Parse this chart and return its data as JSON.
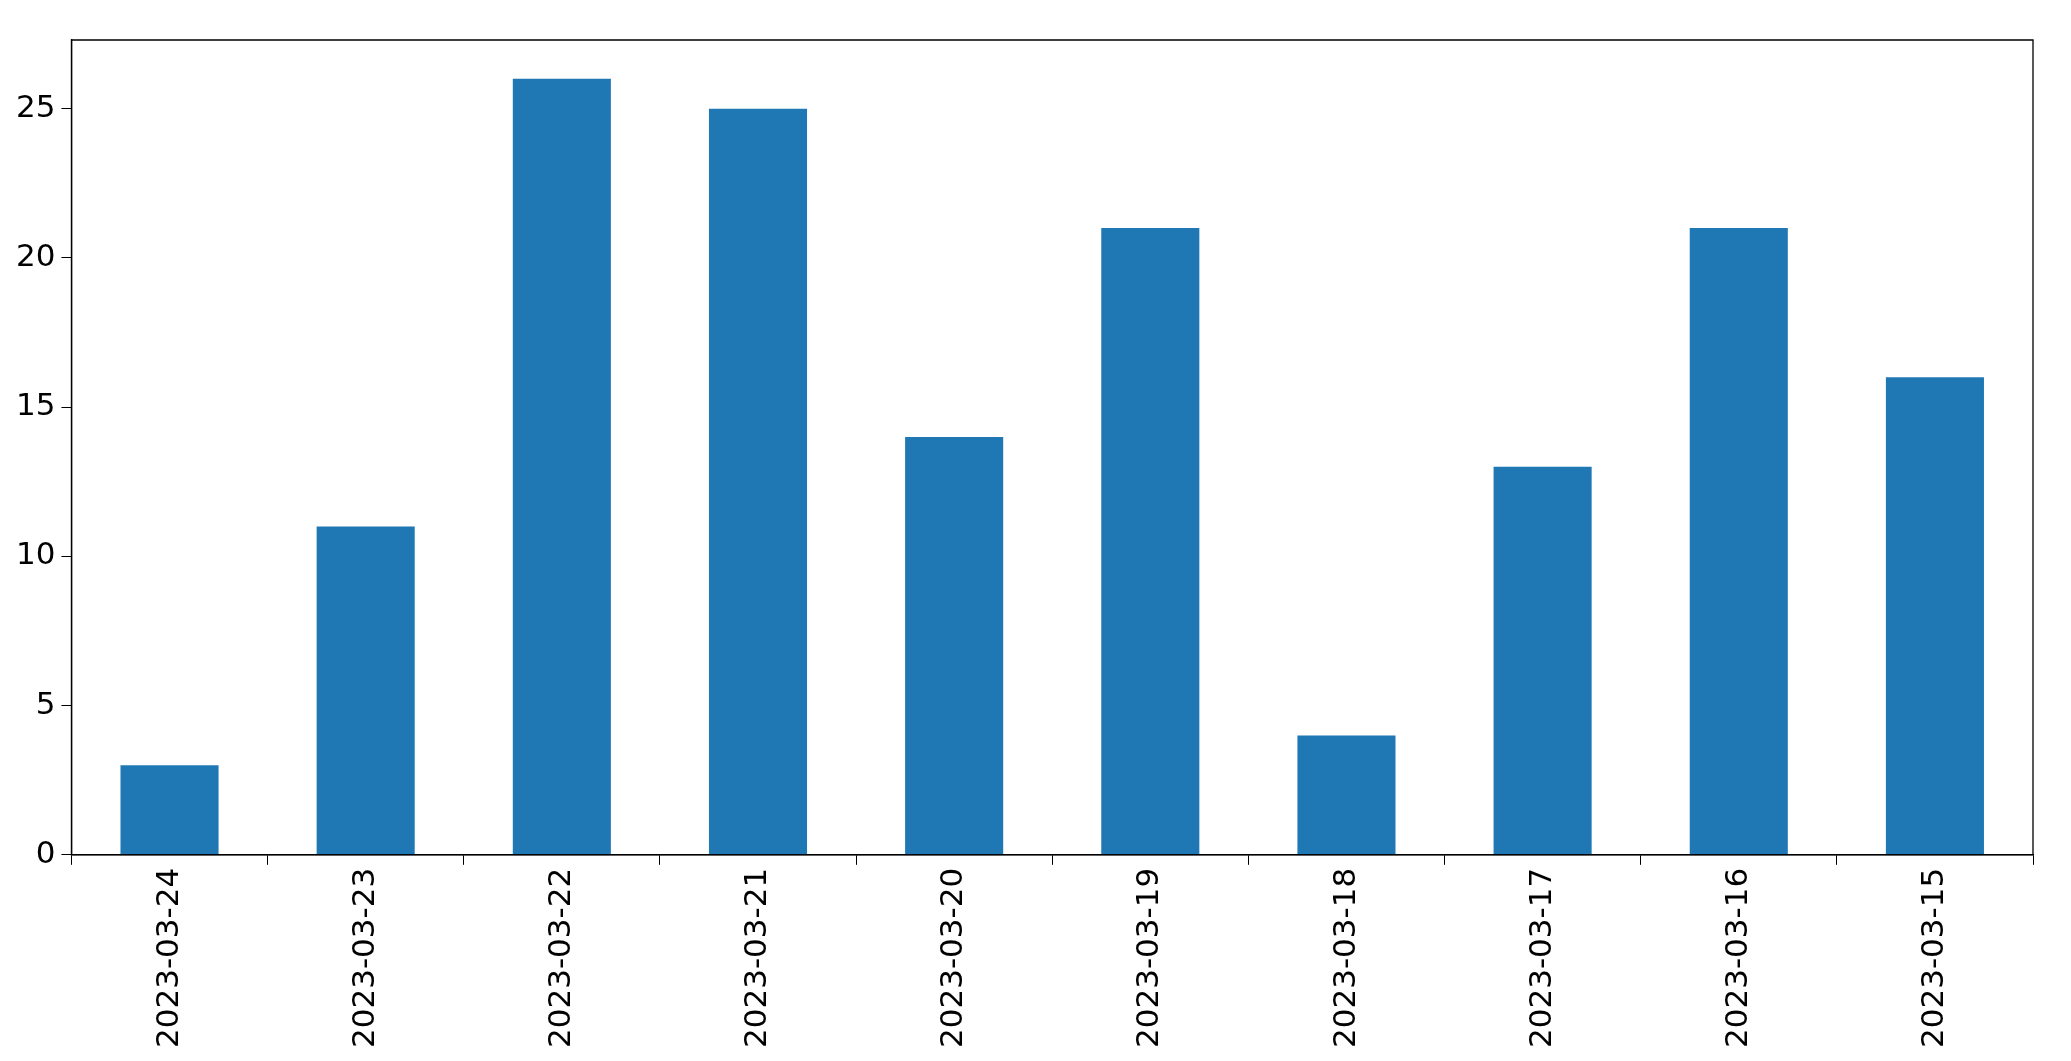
{
  "chart_data": {
    "type": "bar",
    "categories": [
      "2023-03-24",
      "2023-03-23",
      "2023-03-22",
      "2023-03-21",
      "2023-03-20",
      "2023-03-19",
      "2023-03-18",
      "2023-03-17",
      "2023-03-16",
      "2023-03-15"
    ],
    "values": [
      3,
      11,
      26,
      25,
      14,
      21,
      4,
      13,
      21,
      16
    ],
    "color": "#1f77b4",
    "ylim": [
      0,
      27.3
    ],
    "yticks": [
      0,
      5,
      10,
      15,
      20,
      25
    ],
    "grid": false,
    "legend": false
  }
}
